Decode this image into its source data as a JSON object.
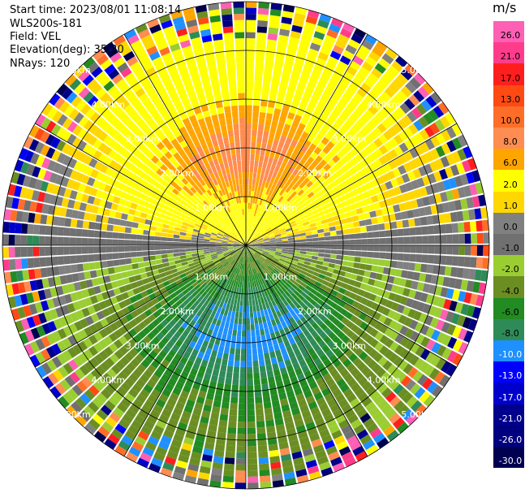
{
  "header": {
    "start_time": "Start time: 2023/08/01 11:08:14",
    "instrument": "WLS200s-181",
    "field": "Field: VEL",
    "elevation": "Elevation(deg): 35.30",
    "nrays": "NRays: 120"
  },
  "colorbar": {
    "unit": "m/s",
    "levels": [
      {
        "label": "26.0",
        "color": "#ff5fb4"
      },
      {
        "label": "21.0",
        "color": "#ff3c8c"
      },
      {
        "label": "17.0",
        "color": "#ff1e1e"
      },
      {
        "label": "13.0",
        "color": "#ff4a14"
      },
      {
        "label": "10.0",
        "color": "#ff6e28"
      },
      {
        "label": "8.0",
        "color": "#ff8c50"
      },
      {
        "label": "6.0",
        "color": "#ffa500"
      },
      {
        "label": "2.0",
        "color": "#ffff00"
      },
      {
        "label": "1.0",
        "color": "#ffd700"
      },
      {
        "label": "0.0",
        "color": "#808080"
      },
      {
        "label": "-1.0",
        "color": "#707070"
      },
      {
        "label": "-2.0",
        "color": "#9acd32"
      },
      {
        "label": "-4.0",
        "color": "#6b8e23"
      },
      {
        "label": "-6.0",
        "color": "#228b22"
      },
      {
        "label": "-8.0",
        "color": "#2e8b57"
      },
      {
        "label": "-10.0",
        "color": "#1e90ff"
      },
      {
        "label": "-13.0",
        "color": "#0000ff"
      },
      {
        "label": "-17.0",
        "color": "#0000cd"
      },
      {
        "label": "-21.0",
        "color": "#00008b"
      },
      {
        "label": "-26.0",
        "color": "#000080"
      },
      {
        "label": "-30.0",
        "color": "#000050"
      }
    ]
  },
  "chart_data": {
    "type": "heatmap",
    "projection": "polar (PPI)",
    "field": "VEL",
    "unit": "m/s",
    "nrays": 120,
    "range_rings_km": [
      1.0,
      2.0,
      3.0,
      4.0,
      5.0
    ],
    "ring_labels": [
      "1.00km",
      "2.00km",
      "3.00km",
      "4.00km",
      "5.00km"
    ],
    "azimuth_spokes_deg": [
      0,
      30,
      60,
      90,
      120,
      150,
      180,
      210,
      240,
      270,
      300,
      330
    ],
    "color_scale": [
      26.0,
      21.0,
      17.0,
      13.0,
      10.0,
      8.0,
      6.0,
      2.0,
      1.0,
      0.0,
      -1.0,
      -2.0,
      -4.0,
      -6.0,
      -8.0,
      -10.0,
      -13.0,
      -17.0,
      -21.0,
      -26.0,
      -30.0
    ],
    "pattern": "positive velocities (yellow to salmon, 2 to 10 m/s) over the northern half, negative velocities (green to blue, -2 to -10 m/s) over the southern half, zero-velocity grey band near the east-west axis, noisy multicolor returns beyond about 4.7 km"
  }
}
